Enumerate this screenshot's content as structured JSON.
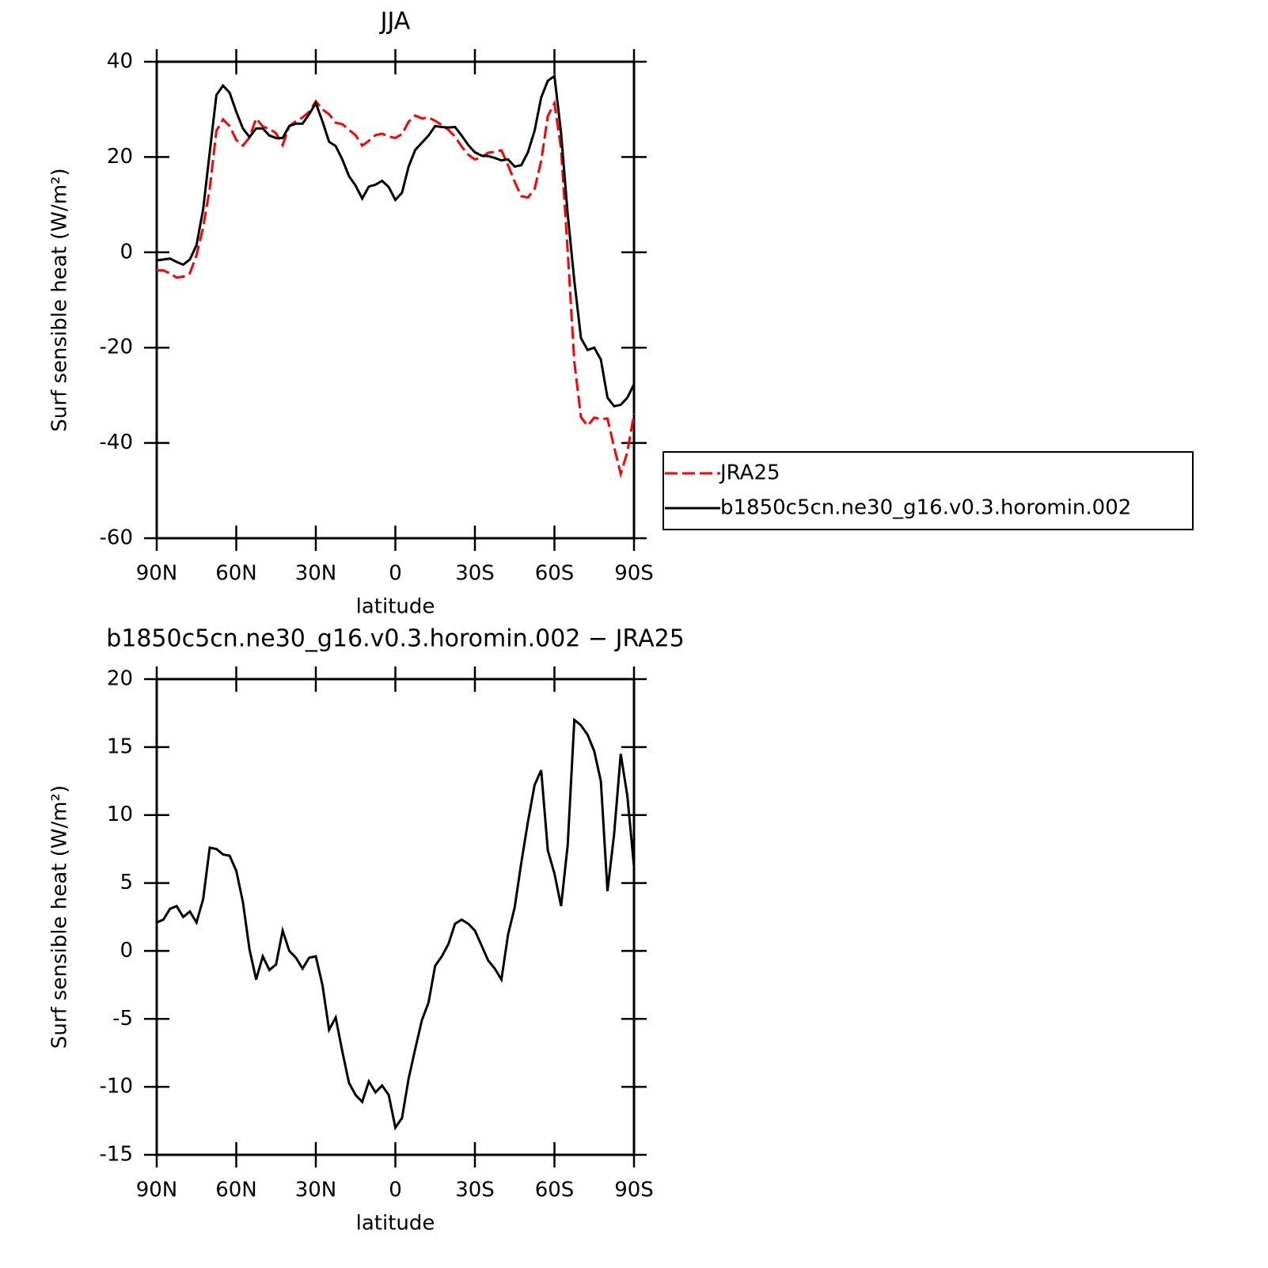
{
  "chart_data": [
    {
      "type": "line",
      "title": "JJA",
      "x_label": "latitude",
      "y_label": "Surf sensible heat (W/m²)",
      "x": [
        90,
        87.5,
        85,
        82.5,
        80,
        77.5,
        75,
        72.5,
        70,
        67.5,
        65,
        62.5,
        60,
        57.5,
        55,
        52.5,
        50,
        47.5,
        45,
        42.5,
        40,
        37.5,
        35,
        32.5,
        30,
        27.5,
        25,
        22.5,
        20,
        17.5,
        15,
        12.5,
        10,
        7.5,
        5,
        2.5,
        0,
        -2.5,
        -5,
        -7.5,
        -10,
        -12.5,
        -15,
        -17.5,
        -20,
        -22.5,
        -25,
        -27.5,
        -30,
        -32.5,
        -35,
        -37.5,
        -40,
        -42.5,
        -45,
        -47.5,
        -50,
        -52.5,
        -55,
        -57.5,
        -60,
        -62.5,
        -65,
        -67.5,
        -70,
        -72.5,
        -75,
        -77.5,
        -80,
        -82.5,
        -85,
        -87.5,
        -90
      ],
      "xlim": [
        90,
        -90
      ],
      "xticks": [
        {
          "value": 90,
          "label": "90N"
        },
        {
          "value": 60,
          "label": "60N"
        },
        {
          "value": 30,
          "label": "30N"
        },
        0,
        {
          "value": -30,
          "label": "30S"
        },
        {
          "value": -60,
          "label": "60S"
        },
        {
          "value": -90,
          "label": "90S"
        }
      ],
      "ylim": [
        -60,
        40
      ],
      "yticks": [
        -60,
        -40,
        -20,
        0,
        20,
        40
      ],
      "legend": "right",
      "series": [
        {
          "name": "JRA25",
          "color": "#ff0000",
          "dash": "dashed",
          "values": [
            -3.8,
            -3.8,
            -4.4,
            -5.3,
            -5.1,
            -4.4,
            -0.6,
            5.2,
            13.4,
            25.5,
            27.9,
            26.5,
            23.6,
            22.4,
            24.1,
            28.1,
            26.4,
            25.9,
            25.0,
            22.5,
            26.5,
            27.5,
            28.3,
            29.5,
            31.7,
            30.0,
            29.0,
            27.2,
            26.9,
            25.7,
            24.6,
            22.4,
            23.4,
            24.6,
            24.9,
            24.3,
            24.0,
            24.8,
            27.4,
            28.7,
            28.1,
            28.3,
            27.6,
            26.7,
            25.7,
            24.3,
            22.2,
            20.5,
            19.5,
            19.9,
            20.9,
            21.1,
            21.4,
            18.3,
            14.8,
            11.8,
            11.5,
            13.3,
            19.2,
            28.6,
            31.3,
            21.7,
            0.2,
            -23.0,
            -34.6,
            -36.4,
            -34.7,
            -35.0,
            -34.9,
            -40.9,
            -46.5,
            -41.9,
            -33.9
          ]
        },
        {
          "name": "b1850c5cn.ne30_g16.v0.3.horomin.002",
          "color": "#000000",
          "values": [
            -1.7,
            -1.5,
            -1.3,
            -2.0,
            -2.6,
            -1.5,
            1.5,
            9,
            21,
            33,
            35,
            33.5,
            29.5,
            26,
            24.2,
            26,
            26,
            24.5,
            24,
            24,
            26.5,
            27,
            27,
            29,
            31.3,
            27.5,
            23.2,
            22.3,
            19.5,
            16,
            14,
            11.3,
            13.8,
            14.2,
            15,
            13.7,
            11,
            12.5,
            18,
            21.5,
            23,
            24.5,
            26.5,
            26.3,
            26.2,
            26.3,
            24.5,
            22.5,
            21,
            20.3,
            20.2,
            19.8,
            19.3,
            19.5,
            18,
            18.3,
            21,
            25.5,
            32.5,
            36,
            37,
            25,
            8,
            -6,
            -18,
            -20.5,
            -20,
            -22.5,
            -30.5,
            -32.3,
            -32,
            -30.5,
            -27.7
          ]
        }
      ]
    },
    {
      "type": "line",
      "title": "b1850c5cn.ne30_g16.v0.3.horomin.002 − JRA25",
      "x_label": "latitude",
      "y_label": "Surf sensible heat (W/m²)",
      "x": [
        90,
        87.5,
        85,
        82.5,
        80,
        77.5,
        75,
        72.5,
        70,
        67.5,
        65,
        62.5,
        60,
        57.5,
        55,
        52.5,
        50,
        47.5,
        45,
        42.5,
        40,
        37.5,
        35,
        32.5,
        30,
        27.5,
        25,
        22.5,
        20,
        17.5,
        15,
        12.5,
        10,
        7.5,
        5,
        2.5,
        0,
        -2.5,
        -5,
        -7.5,
        -10,
        -12.5,
        -15,
        -17.5,
        -20,
        -22.5,
        -25,
        -27.5,
        -30,
        -32.5,
        -35,
        -37.5,
        -40,
        -42.5,
        -45,
        -47.5,
        -50,
        -52.5,
        -55,
        -57.5,
        -60,
        -62.5,
        -65,
        -67.5,
        -70,
        -72.5,
        -75,
        -77.5,
        -80,
        -82.5,
        -85,
        -87.5,
        -90
      ],
      "xlim": [
        90,
        -90
      ],
      "xticks": [
        {
          "value": 90,
          "label": "90N"
        },
        {
          "value": 60,
          "label": "60N"
        },
        {
          "value": 30,
          "label": "30N"
        },
        0,
        {
          "value": -30,
          "label": "30S"
        },
        {
          "value": -60,
          "label": "60S"
        },
        {
          "value": -90,
          "label": "90S"
        }
      ],
      "ylim": [
        -15,
        20
      ],
      "yticks": [
        -15,
        -10,
        -5,
        0,
        5,
        10,
        15,
        20
      ],
      "color": "#000000",
      "values": [
        2.1,
        2.3,
        3.1,
        3.3,
        2.5,
        2.9,
        2.1,
        3.8,
        7.6,
        7.5,
        7.1,
        7.0,
        5.9,
        3.6,
        0.1,
        -2.1,
        -0.4,
        -1.4,
        -1.0,
        1.5,
        0.0,
        -0.5,
        -1.3,
        -0.5,
        -0.4,
        -2.5,
        -5.8,
        -4.9,
        -7.4,
        -9.7,
        -10.6,
        -11.1,
        -9.6,
        -10.4,
        -9.9,
        -10.6,
        -13.0,
        -12.3,
        -9.4,
        -7.2,
        -5.1,
        -3.8,
        -1.1,
        -0.4,
        0.5,
        2.0,
        2.3,
        2.0,
        1.5,
        0.4,
        -0.7,
        -1.3,
        -2.1,
        1.2,
        3.2,
        6.5,
        9.5,
        12.2,
        13.3,
        7.4,
        5.7,
        3.3,
        7.8,
        17.0,
        16.6,
        15.9,
        14.7,
        12.5,
        4.4,
        8.6,
        14.5,
        11.4,
        6.2
      ]
    }
  ]
}
